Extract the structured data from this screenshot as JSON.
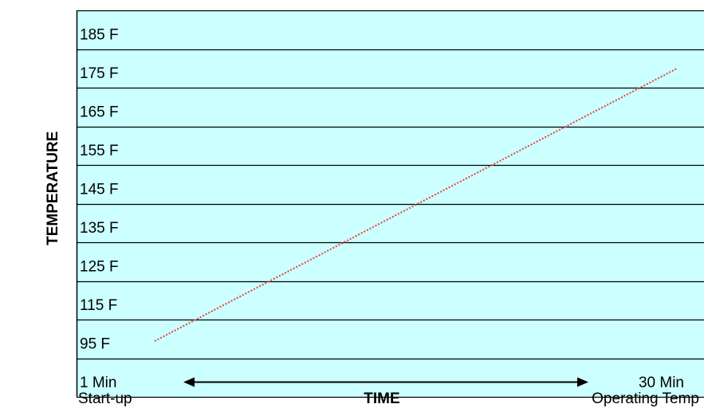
{
  "chart_data": {
    "type": "line",
    "ylabel": "TEMPERATURE",
    "xlabel": "TIME",
    "y_tick_labels": [
      "185 F",
      "175 F",
      "165 F",
      "155 F",
      "145 F",
      "135 F",
      "125 F",
      "115 F",
      "95 F"
    ],
    "x_start_label": "1 Min",
    "x_end_label": "30 Min",
    "x_start_caption": "Start-up",
    "x_end_caption": "Operating Temp",
    "series": [
      {
        "values": [
          {
            "x": 1,
            "y": 95
          },
          {
            "x": 30,
            "y": 175
          }
        ],
        "color": "#e8413c",
        "style": "dotted"
      }
    ],
    "grid": true,
    "colors": {
      "plot_background": "#ccffff",
      "grid_line": "#000000",
      "line": "#e8413c"
    }
  }
}
